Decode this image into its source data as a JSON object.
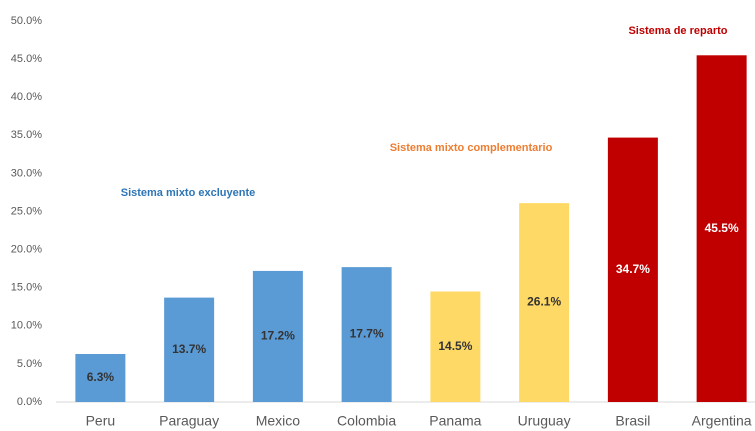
{
  "chart_data": {
    "type": "bar",
    "categories": [
      "Peru",
      "Paraguay",
      "Mexico",
      "Colombia",
      "Panama",
      "Uruguay",
      "Brasil",
      "Argentina"
    ],
    "values": [
      6.3,
      13.7,
      17.2,
      17.7,
      14.5,
      26.1,
      34.7,
      45.5
    ],
    "value_labels": [
      "6.3%",
      "13.7%",
      "17.2%",
      "17.7%",
      "14.5%",
      "26.1%",
      "34.7%",
      "45.5%"
    ],
    "colors": [
      "#5b9bd5",
      "#5b9bd5",
      "#5b9bd5",
      "#5b9bd5",
      "#ffd966",
      "#ffd966",
      "#c00000",
      "#c00000"
    ],
    "value_label_colors": [
      "#333333",
      "#333333",
      "#333333",
      "#333333",
      "#333333",
      "#333333",
      "#ffffff",
      "#ffffff"
    ],
    "ylim": [
      0,
      50
    ],
    "yticks": [
      {
        "value": 0,
        "label": "0.0%"
      },
      {
        "value": 5,
        "label": "5.0%"
      },
      {
        "value": 10,
        "label": "10.0%"
      },
      {
        "value": 15,
        "label": "15.0%"
      },
      {
        "value": 20,
        "label": "20.0%"
      },
      {
        "value": 25,
        "label": "25.0%"
      },
      {
        "value": 30,
        "label": "30.0%"
      },
      {
        "value": 35,
        "label": "35.0%"
      },
      {
        "value": 40,
        "label": "40.0%"
      },
      {
        "value": 45,
        "label": "45.0%"
      },
      {
        "value": 50,
        "label": "50.0%"
      }
    ],
    "grid": false,
    "annotations": [
      {
        "text": "Sistema mixto excluyente",
        "color": "#2e75b6"
      },
      {
        "text": "Sistema mixto complementario",
        "color": "#ed7d31"
      },
      {
        "text": "Sistema de reparto",
        "color": "#c00000"
      }
    ]
  }
}
